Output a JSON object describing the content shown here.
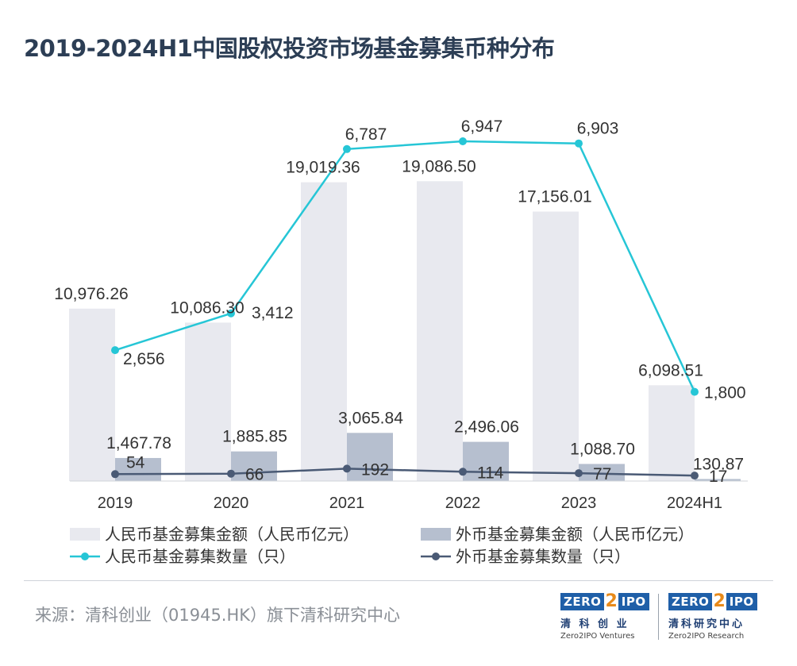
{
  "title": "2019-2024H1中国股权投资市场基金募集币种分布",
  "source": "来源：清科创业（01945.HK）旗下清科研究中心",
  "logos": [
    {
      "mark_left": "ZERO",
      "mark_mid": "2",
      "mark_right": "IPO",
      "cn": "清 科 创 业",
      "en": "Zero2IPO Ventures"
    },
    {
      "mark_left": "ZERO",
      "mark_mid": "2",
      "mark_right": "IPO",
      "cn": "清科研究中心",
      "en": "Zero2IPO Research"
    }
  ],
  "colors": {
    "rmb_bar": "#e8e9ef",
    "fx_bar": "#b6bfcf",
    "rmb_line": "#26c6d6",
    "fx_line": "#4a5a75"
  },
  "chart_data": {
    "type": "bar+line",
    "title": "2019-2024H1中国股权投资市场基金募集币种分布",
    "categories": [
      "2019",
      "2020",
      "2021",
      "2022",
      "2023",
      "2024H1"
    ],
    "bar_series": [
      {
        "name": "人民币基金募集金额（人民币亿元）",
        "values": [
          10976.26,
          10086.3,
          19019.36,
          19086.5,
          17156.01,
          6098.51
        ],
        "labels": [
          "10,976.26",
          "10,086.30",
          "19,019.36",
          "19,086.50",
          "17,156.01",
          "6,098.51"
        ]
      },
      {
        "name": "外币基金募集金额（人民币亿元）",
        "values": [
          1467.78,
          1885.85,
          3065.84,
          2496.06,
          1088.7,
          130.87
        ],
        "labels": [
          "1,467.78",
          "1,885.85",
          "3,065.84",
          "2,496.06",
          "1,088.70",
          "130.87"
        ]
      }
    ],
    "line_series": [
      {
        "name": "人民币基金募集数量（只）",
        "values": [
          2656,
          3412,
          6787,
          6947,
          6903,
          1800
        ],
        "labels": [
          "2,656",
          "3,412",
          "6,787",
          "6,947",
          "6,903",
          "1,800"
        ]
      },
      {
        "name": "外币基金募集数量（只）",
        "values": [
          54,
          66,
          192,
          114,
          77,
          17
        ],
        "labels": [
          "54",
          "66",
          "192",
          "114",
          "77",
          "17"
        ]
      }
    ],
    "bar_axis_max": 25000,
    "line_axis_max": 10000,
    "legend_position": "bottom"
  }
}
